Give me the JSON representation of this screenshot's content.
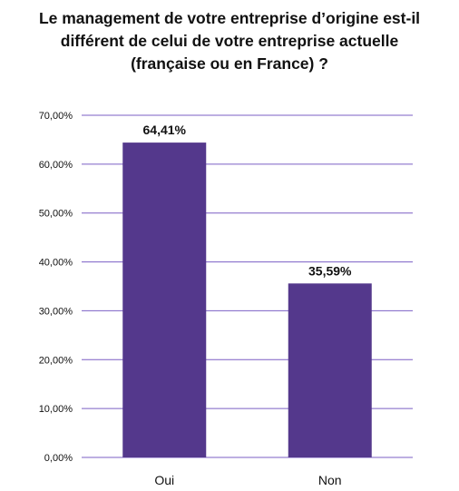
{
  "chart_data": {
    "type": "bar",
    "title_lines": [
      "Le management de votre entreprise d’origine est-il",
      "différent de celui de votre entreprise actuelle",
      "(française ou en France) ?"
    ],
    "categories": [
      "Oui",
      "Non"
    ],
    "values": [
      64.41,
      35.59
    ],
    "data_labels": [
      "64,41%",
      "35,59%"
    ],
    "ylim": [
      0,
      70
    ],
    "yticks": [
      0,
      10,
      20,
      30,
      40,
      50,
      60,
      70
    ],
    "ytick_labels": [
      "0,00%",
      "10,00%",
      "20,00%",
      "30,00%",
      "40,00%",
      "50,00%",
      "60,00%",
      "70,00%"
    ],
    "grid": true,
    "legend": "none",
    "colors": {
      "bar": "#54388c",
      "grid": "#7b5fc4",
      "text": "#111111"
    }
  }
}
